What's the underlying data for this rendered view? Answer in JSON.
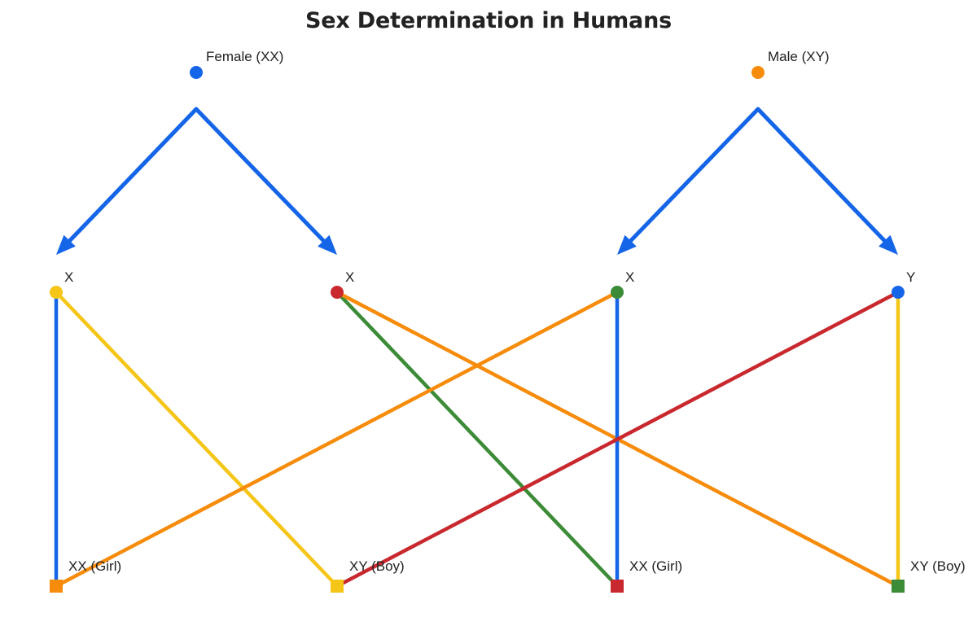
{
  "title": "Sex Determination in Humans",
  "colors": {
    "blue": "#1565e8",
    "orange": "#f78c0c",
    "yellow": "#f5c518",
    "red": "#c8282e",
    "green": "#3b8b37"
  },
  "parents": [
    {
      "id": "female",
      "label": "Female (XX)",
      "color": "#1565e8"
    },
    {
      "id": "male",
      "label": "Male (XY)",
      "color": "#f78c0c"
    }
  ],
  "gametes": [
    {
      "id": "g1",
      "label": "X",
      "parent": "female",
      "color": "#f5c518"
    },
    {
      "id": "g2",
      "label": "X",
      "parent": "female",
      "color": "#c8282e"
    },
    {
      "id": "g3",
      "label": "X",
      "parent": "male",
      "color": "#3b8b37"
    },
    {
      "id": "g4",
      "label": "Y",
      "parent": "male",
      "color": "#1565e8"
    }
  ],
  "offspring": [
    {
      "id": "o1",
      "label": "XX (Girl)",
      "color": "#f78c0c"
    },
    {
      "id": "o2",
      "label": "XY (Boy)",
      "color": "#f5c518"
    },
    {
      "id": "o3",
      "label": "XX (Girl)",
      "color": "#c8282e"
    },
    {
      "id": "o4",
      "label": "XY (Boy)",
      "color": "#3b8b37"
    }
  ],
  "arrows": [
    {
      "from": "female",
      "to": "g1",
      "color": "#1565e8"
    },
    {
      "from": "female",
      "to": "g2",
      "color": "#1565e8"
    },
    {
      "from": "male",
      "to": "g3",
      "color": "#1565e8"
    },
    {
      "from": "male",
      "to": "g4",
      "color": "#1565e8"
    }
  ],
  "links": [
    {
      "from": "g1",
      "to": "o1",
      "color": "#1565e8"
    },
    {
      "from": "g1",
      "to": "o2",
      "color": "#f5c518"
    },
    {
      "from": "g2",
      "to": "o3",
      "color": "#3b8b37"
    },
    {
      "from": "g2",
      "to": "o4",
      "color": "#f78c0c"
    },
    {
      "from": "g3",
      "to": "o1",
      "color": "#f78c0c"
    },
    {
      "from": "g3",
      "to": "o3",
      "color": "#1565e8"
    },
    {
      "from": "g4",
      "to": "o2",
      "color": "#c8282e"
    },
    {
      "from": "g4",
      "to": "o4",
      "color": "#f5c518"
    }
  ]
}
